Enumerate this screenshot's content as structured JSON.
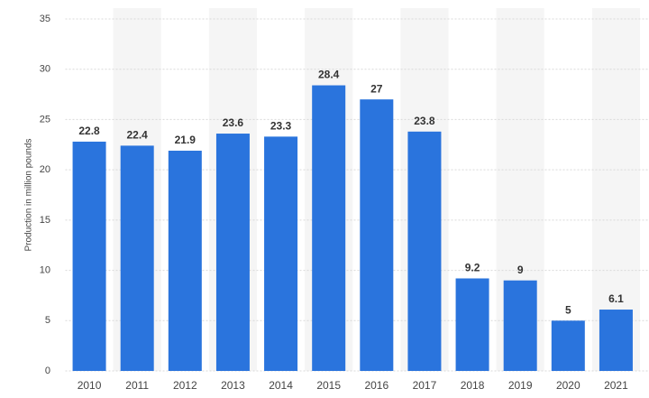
{
  "chart_data": {
    "type": "bar",
    "y_label": "Production in million pounds",
    "categories": [
      "2010",
      "2011",
      "2012",
      "2013",
      "2014",
      "2015",
      "2016",
      "2017",
      "2018",
      "2019",
      "2020",
      "2021"
    ],
    "values": [
      22.8,
      22.4,
      21.9,
      23.6,
      23.3,
      28.4,
      27,
      23.8,
      9.2,
      9,
      5,
      6.1
    ],
    "color": "#2a74dd",
    "ylim": [
      0,
      35
    ],
    "yticks": [
      0,
      5,
      10,
      15,
      20,
      25,
      30,
      35
    ],
    "grid": true
  }
}
